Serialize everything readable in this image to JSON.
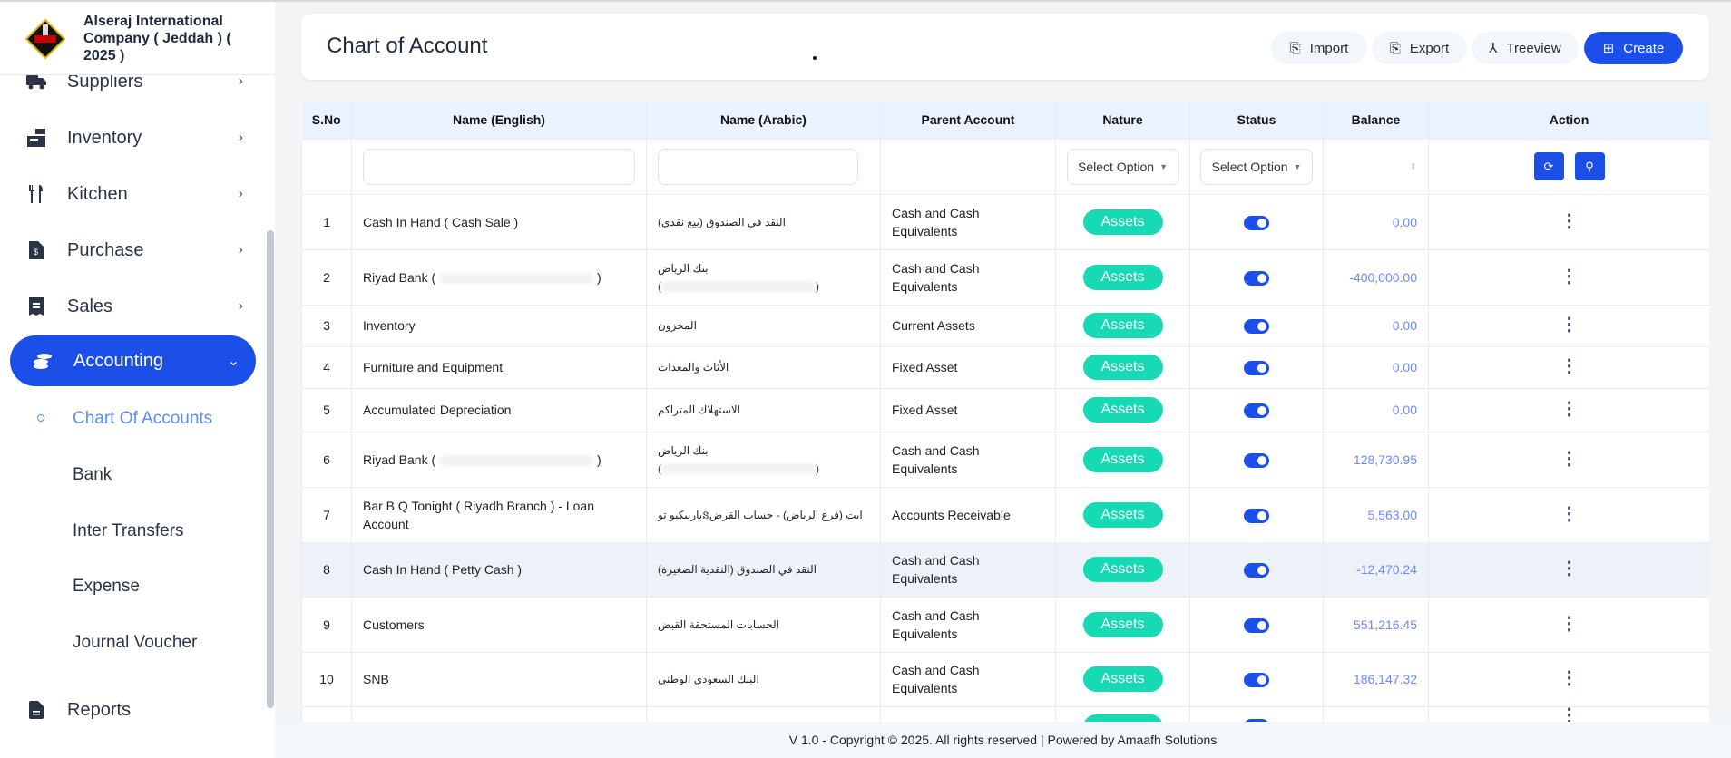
{
  "app": {
    "company": "Alseraj International Company ( Jeddah ) ( 2025 )"
  },
  "sidebar": {
    "items": [
      {
        "label": "Suppliers",
        "icon": "truck-icon"
      },
      {
        "label": "Inventory",
        "icon": "inventory-icon"
      },
      {
        "label": "Kitchen",
        "icon": "utensils-icon"
      },
      {
        "label": "Purchase",
        "icon": "invoice-icon"
      },
      {
        "label": "Sales",
        "icon": "receipt-icon"
      },
      {
        "label": "Accounting",
        "icon": "coins-icon",
        "active": true
      },
      {
        "label": "Reports",
        "icon": "document-icon"
      }
    ],
    "sub_items": [
      {
        "label": "Chart Of Accounts",
        "active": true
      },
      {
        "label": "Bank"
      },
      {
        "label": "Inter Transfers"
      },
      {
        "label": "Expense"
      },
      {
        "label": "Journal Voucher"
      }
    ]
  },
  "header": {
    "title": "Chart of Account",
    "buttons": {
      "import": "Import",
      "export": "Export",
      "treeview": "Treeview",
      "create": "Create"
    }
  },
  "table": {
    "columns": [
      "S.No",
      "Name (English)",
      "Name (Arabic)",
      "Parent Account",
      "Nature",
      "Status",
      "Balance",
      "Action"
    ],
    "filters": {
      "nature": "Select Option",
      "status": "Select Option",
      "name_en": "",
      "name_ar": ""
    },
    "rows": [
      {
        "sno": "1",
        "en": "Cash In Hand ( Cash Sale )",
        "ar": "النقد في الصندوق (بيع نقدي)",
        "parent": "Cash and Cash Equivalents",
        "nature": "Assets",
        "active": true,
        "balance": "0.00"
      },
      {
        "sno": "2",
        "en": "Riyad Bank (",
        "en_tail": ")",
        "ar": "بنك الرياض",
        "ar2": "(",
        "ar2_tail": ")",
        "parent": "Cash and Cash Equivalents",
        "nature": "Assets",
        "active": true,
        "balance": "-400,000.00"
      },
      {
        "sno": "3",
        "en": "Inventory",
        "ar": "المخزون",
        "parent": "Current Assets",
        "nature": "Assets",
        "active": true,
        "balance": "0.00"
      },
      {
        "sno": "4",
        "en": "Furniture and Equipment",
        "ar": "الأثاث والمعدات",
        "parent": "Fixed Asset",
        "nature": "Assets",
        "active": true,
        "balance": "0.00"
      },
      {
        "sno": "5",
        "en": "Accumulated Depreciation",
        "ar": "الاستهلاك المتراكم",
        "parent": "Fixed Asset",
        "nature": "Assets",
        "active": true,
        "balance": "0.00"
      },
      {
        "sno": "6",
        "en": "Riyad Bank (",
        "en_tail": ")",
        "ar": "بنك الرياض",
        "ar2": "(",
        "ar2_tail": ")",
        "parent": "Cash and Cash Equivalents",
        "nature": "Assets",
        "active": true,
        "balance": "128,730.95"
      },
      {
        "sno": "7",
        "en": "Bar B Q Tonight ( Riyadh Branch ) - Loan Account",
        "ar": "باربيكيو توនايت (فرع الرياض) - حساب القرض",
        "parent": "Accounts Receivable",
        "nature": "Assets",
        "active": true,
        "balance": "5,563.00"
      },
      {
        "sno": "8",
        "en": "Cash In Hand ( Petty Cash )",
        "ar": "النقد في الصندوق (النقدية الصغيرة)",
        "parent": "Cash and Cash Equivalents",
        "nature": "Assets",
        "active": true,
        "balance": "-12,470.24"
      },
      {
        "sno": "9",
        "en": "Customers",
        "ar": "الحسابات المستحقة القبض",
        "parent": "Cash and Cash Equivalents",
        "nature": "Assets",
        "active": true,
        "balance": "551,216.45"
      },
      {
        "sno": "10",
        "en": "SNB",
        "ar": "البنك السعودي الوطني",
        "parent": "Cash and Cash Equivalents",
        "nature": "Assets",
        "active": true,
        "balance": "186,147.32"
      }
    ]
  },
  "footer": {
    "text": "V 1.0 - Copyright © 2025. All rights reserved | Powered by Amaafh Solutions"
  },
  "colors": {
    "primary": "#1b4fe8",
    "badge": "#17d9b4",
    "balance": "#6f86ff",
    "active_sub": "#5b8cf7"
  }
}
